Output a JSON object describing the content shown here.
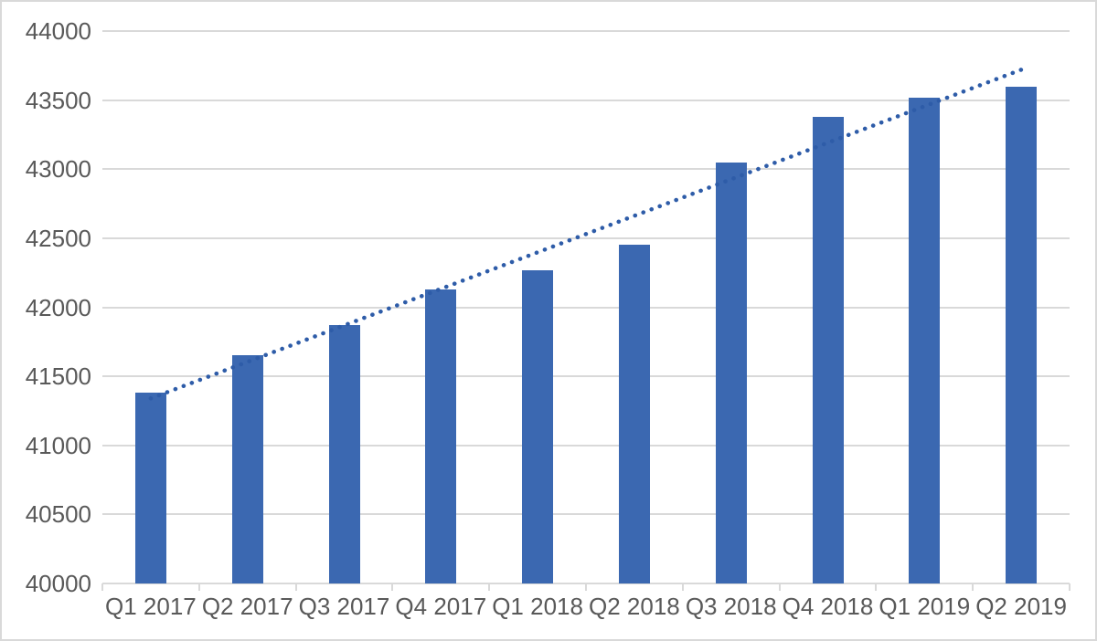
{
  "chart_data": {
    "type": "bar",
    "title": "",
    "xlabel": "",
    "ylabel": "",
    "categories": [
      "Q1 2017",
      "Q2 2017",
      "Q3 2017",
      "Q4 2017",
      "Q1 2018",
      "Q2 2018",
      "Q3 2018",
      "Q4 2018",
      "Q1 2019",
      "Q2 2019"
    ],
    "values": [
      41380,
      41650,
      41870,
      42130,
      42270,
      42450,
      43050,
      43380,
      43520,
      43600
    ],
    "y_ticks": [
      40000,
      40500,
      41000,
      41500,
      42000,
      42500,
      43000,
      43500,
      44000
    ],
    "ylim": [
      40000,
      44000
    ],
    "grid": true,
    "legend": "none",
    "trendline": {
      "style": "dotted",
      "start_value": 41340,
      "end_value": 43720
    },
    "colors": {
      "bar": "#3b68b1",
      "trendline": "#2e5ca8",
      "gridline": "#d9d9d9",
      "axis": "#d9d9d9",
      "text": "#595959",
      "border": "#d9d9d9",
      "background": "#ffffff"
    }
  }
}
